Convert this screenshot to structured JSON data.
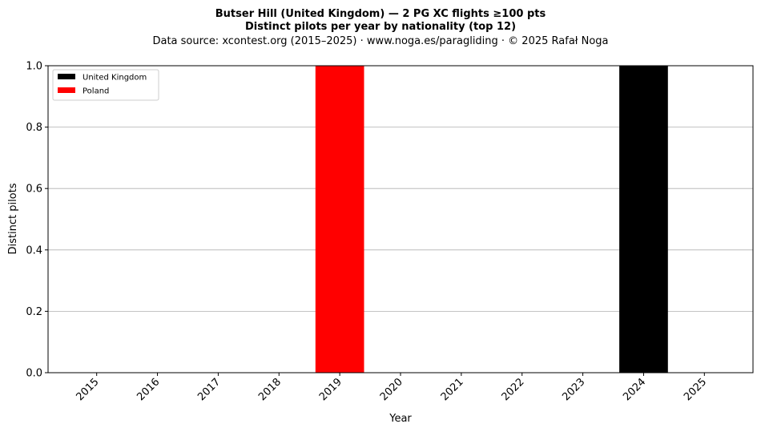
{
  "chart_data": {
    "type": "bar",
    "title_lines": [
      "Butser Hill (United Kingdom)  —  2 PG XC flights ≥100 pts",
      "Distinct pilots per year by nationality (top 12)"
    ],
    "subtitle": "Data source: xcontest.org (2015–2025)  ·  www.noga.es/paragliding  ·  © 2025 Rafał Noga",
    "xlabel": "Year",
    "ylabel": "Distinct pilots",
    "categories": [
      "2015",
      "2016",
      "2017",
      "2018",
      "2019",
      "2020",
      "2021",
      "2022",
      "2023",
      "2024",
      "2025"
    ],
    "series": [
      {
        "name": "United Kingdom",
        "color": "#000000",
        "values": [
          0,
          0,
          0,
          0,
          0,
          0,
          0,
          0,
          0,
          1,
          0
        ]
      },
      {
        "name": "Poland",
        "color": "#ff0000",
        "values": [
          0,
          0,
          0,
          0,
          1,
          0,
          0,
          0,
          0,
          0,
          0
        ]
      }
    ],
    "ylim": [
      0,
      1.0
    ],
    "yticks": [
      "0.0",
      "0.2",
      "0.4",
      "0.6",
      "0.8",
      "1.0"
    ],
    "grid": "y",
    "stacked": true,
    "legend_position": "top-left"
  }
}
